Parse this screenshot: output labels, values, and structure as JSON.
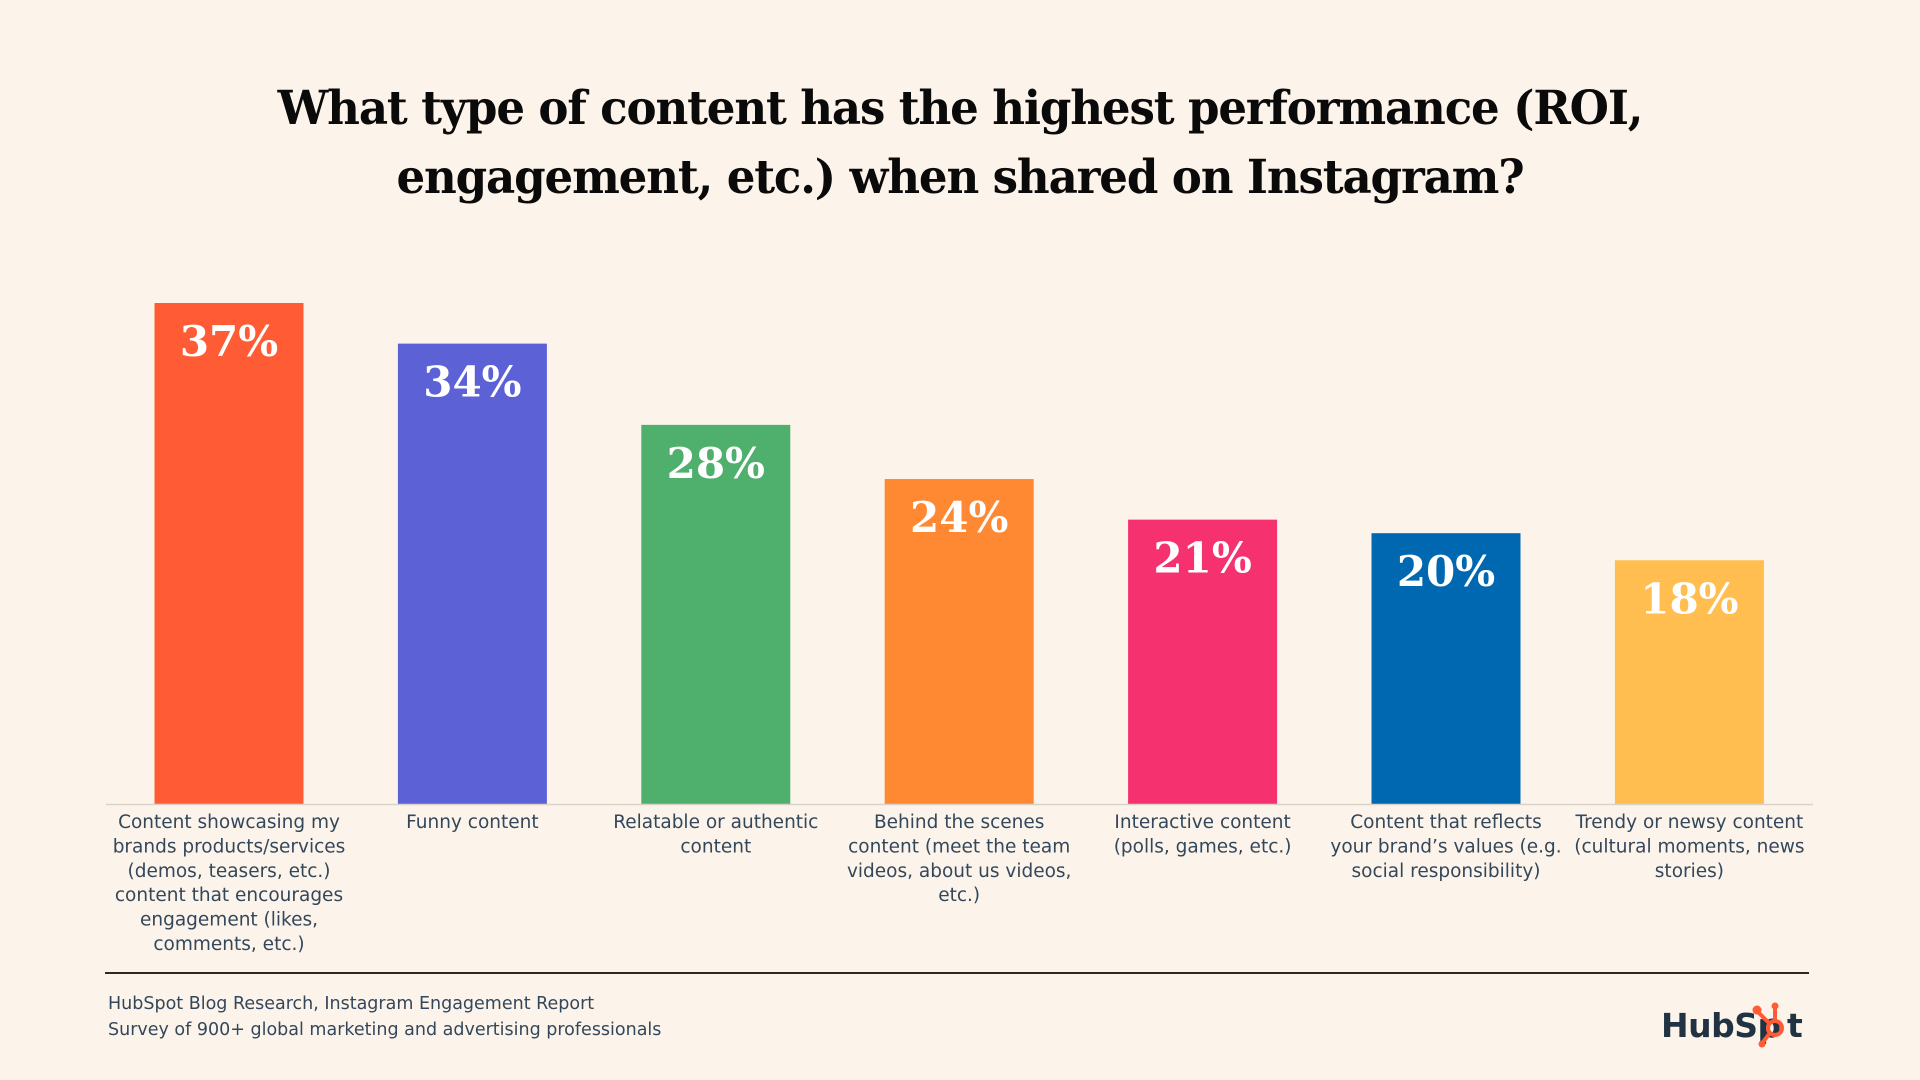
{
  "chart_data": {
    "type": "bar",
    "title": "What type of content has the highest performance (ROI, engagement, etc.) when shared on Instagram?",
    "title_lines": [
      "What type of content has the highest performance (ROI,",
      "engagement, etc.) when shared on Instagram?"
    ],
    "xlabel": "",
    "ylabel": "",
    "ylim": [
      0,
      37
    ],
    "grid": false,
    "legend": "none",
    "categories": [
      "Content showcasing my brands products/services (demos, teasers, etc.) content that encourages engagement (likes, comments, etc.)",
      "Funny content",
      "Relatable or authentic content",
      "Behind the scenes content (meet the team videos, about us videos, etc.)",
      "Interactive content (polls, games, etc.)",
      "Content that reflects your brand’s values (e.g. social responsibility)",
      "Trendy or newsy content (cultural moments, news stories)"
    ],
    "category_label_lines": [
      [
        "Content showcasing my",
        "brands products/services",
        "(demos, teasers, etc.)",
        "content that encourages",
        "engagement (likes,",
        "comments, etc.)"
      ],
      [
        "Funny content"
      ],
      [
        "Relatable or authentic",
        "content"
      ],
      [
        "Behind the scenes",
        "content (meet the team",
        "videos, about us videos,",
        "etc.)"
      ],
      [
        "Interactive content",
        "(polls, games, etc.)"
      ],
      [
        "Content that reflects",
        "your brand’s values (e.g.",
        "social responsibility)"
      ],
      [
        "Trendy or newsy content",
        "(cultural moments, news",
        "stories)"
      ]
    ],
    "values": [
      37,
      34,
      28,
      24,
      21,
      20,
      18
    ],
    "value_labels": [
      "37%",
      "34%",
      "28%",
      "24%",
      "21%",
      "20%",
      "18%"
    ],
    "unit": "%",
    "colors": [
      "#FF5C35",
      "#5C62D6",
      "#4FB06D",
      "#FF8933",
      "#F5316F",
      "#0068B1",
      "#FFBE4F"
    ]
  },
  "footer": {
    "source": "HubSpot Blog Research, Instagram Engagement Report",
    "survey": "Survey of 900+ global marketing and advertising professionals"
  },
  "brand": {
    "logo_text_left": "HubSp",
    "logo_text_right": "t",
    "logo_name": "HubSpot",
    "text_color": "#213343",
    "accent_color": "#FF5C35"
  },
  "colors": {
    "background": "#FCF4EB",
    "title": "#0A0A0A",
    "label": "#33475B",
    "axis": "#D9D2C9"
  }
}
